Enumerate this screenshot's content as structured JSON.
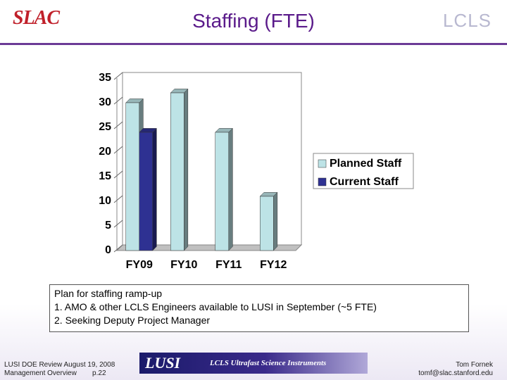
{
  "header": {
    "title": "Staffing (FTE)",
    "logo_left": "SLAC",
    "logo_right": "LCLS"
  },
  "chart_data": {
    "type": "bar3d",
    "categories": [
      "FY09",
      "FY10",
      "FY11",
      "FY12"
    ],
    "series": [
      {
        "name": "Planned Staff",
        "color": "#bde3e6",
        "values": [
          30,
          32,
          24,
          11
        ]
      },
      {
        "name": "Current Staff",
        "color": "#2e3192",
        "values": [
          24,
          null,
          null,
          null
        ]
      }
    ],
    "ylim": [
      0,
      35
    ],
    "yticks": [
      0,
      5,
      10,
      15,
      20,
      25,
      30,
      35
    ],
    "legend": "right"
  },
  "notes": {
    "heading": "Plan for staffing ramp-up",
    "items": [
      "1.  AMO & other LCLS Engineers available to LUSI in September (~5 FTE)",
      "2.  Seeking Deputy Project Manager"
    ]
  },
  "footer": {
    "left": [
      "LUSI DOE Review August 19, 2008",
      "Management Overview        p.22"
    ],
    "banner": [
      "LUSI",
      "LCLS Ultrafast Science Instruments"
    ],
    "right": [
      "Tom Fornek",
      "tomf@slac.stanford.edu"
    ]
  }
}
